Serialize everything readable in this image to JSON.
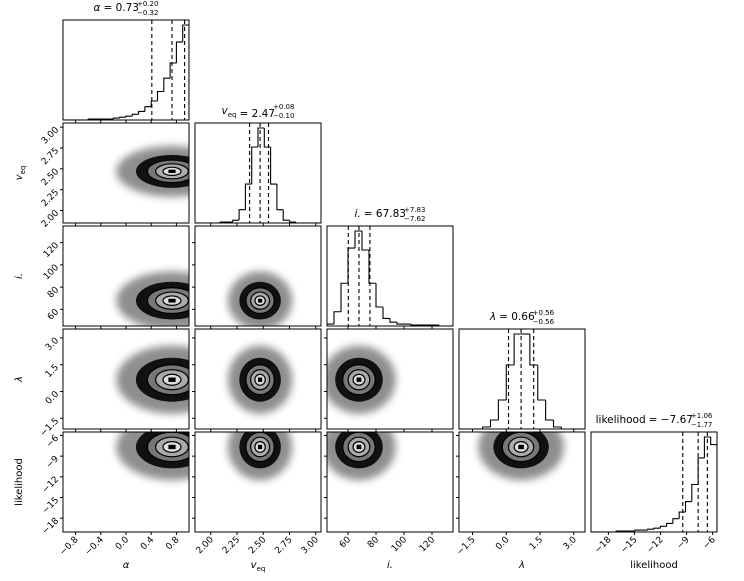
{
  "chart_data": {
    "type": "corner",
    "params": [
      {
        "label": "α",
        "title_value": "= 0.73",
        "upper": "+0.20",
        "lower": "−0.32",
        "lim": [
          -1,
          1
        ],
        "ticks": [
          {
            "value": -0.8,
            "label": "−0.8"
          },
          {
            "value": -0.4,
            "label": "−0.4"
          },
          {
            "value": 0,
            "label": "0.0"
          },
          0.4,
          0.8
        ],
        "bins": [
          -1,
          -0.9,
          -0.8,
          -0.7,
          -0.6,
          -0.5,
          -0.4,
          -0.3,
          -0.2,
          -0.1,
          0,
          0.1,
          0.2,
          0.3,
          0.4,
          0.5,
          0.6,
          0.7,
          0.8,
          0.9,
          1
        ],
        "counts": [
          0,
          0,
          0,
          0,
          1,
          1,
          1,
          1,
          2,
          3,
          4,
          6,
          9,
          14,
          20,
          30,
          44,
          60,
          82,
          100
        ],
        "quantiles": [
          0.41,
          0.73,
          0.93
        ]
      },
      {
        "label": {
          "main": "v",
          "sub": "eq"
        },
        "title_value": "= 2.47",
        "upper": "+0.08",
        "lower": "−0.10",
        "lim": [
          1.85,
          3.05
        ],
        "ticks": [
          {
            "value": 2,
            "label": "2.00"
          },
          2.25,
          {
            "value": 2.5,
            "label": "2.50"
          },
          2.75,
          {
            "value": 3,
            "label": "3.00"
          }
        ],
        "bins": [
          1.85,
          1.91,
          1.97,
          2.03,
          2.09,
          2.15,
          2.21,
          2.27,
          2.33,
          2.39,
          2.45,
          2.51,
          2.57,
          2.63,
          2.69,
          2.75,
          2.81,
          2.87,
          2.93,
          2.99,
          3.05
        ],
        "counts": [
          0,
          0,
          0,
          0,
          1,
          1,
          3,
          14,
          41,
          80,
          100,
          80,
          41,
          14,
          3,
          1,
          0,
          0,
          0,
          0
        ],
        "quantiles": [
          2.37,
          2.47,
          2.55
        ]
      },
      {
        "label": "i.",
        "title_value": "= 67.83",
        "upper": "+7.83",
        "lower": "−7.62",
        "lim": [
          45,
          135
        ],
        "ticks": [
          60,
          80,
          100,
          120
        ],
        "bins": [
          45,
          50,
          55,
          60,
          65,
          70,
          75,
          80,
          85,
          90,
          95,
          100,
          105,
          110,
          115,
          120,
          125,
          130,
          135
        ],
        "counts": [
          2,
          15,
          45,
          82,
          100,
          80,
          45,
          20,
          8,
          4,
          2,
          2,
          1,
          1,
          1,
          1,
          0,
          0
        ],
        "quantiles": [
          60.21,
          67.83,
          75.66
        ]
      },
      {
        "label": "λ",
        "title_value": "= 0.66",
        "upper": "+0.56",
        "lower": "−0.56",
        "lim": [
          -2.1,
          3.5
        ],
        "ticks": [
          {
            "value": -1.5,
            "label": "−1.5"
          },
          {
            "value": 0,
            "label": "0.0"
          },
          1.5,
          {
            "value": 3,
            "label": "3.0"
          }
        ],
        "bins": [
          -2.1,
          -1.75,
          -1.4,
          -1.05,
          -0.7,
          -0.35,
          0,
          0.35,
          0.7,
          1.05,
          1.4,
          1.75,
          2.1,
          2.45,
          2.8,
          3.15,
          3.5
        ],
        "counts": [
          0,
          0,
          0,
          2,
          9,
          29,
          64,
          95,
          95,
          64,
          29,
          9,
          2,
          0,
          0,
          0
        ],
        "quantiles": [
          0.1,
          0.66,
          1.22
        ]
      },
      {
        "label": "likelihood",
        "title_value": "= −7.67",
        "upper": "+1.06",
        "lower": "−1.77",
        "lim": [
          -20,
          -5.5
        ],
        "ticks": [
          {
            "value": -18,
            "label": "−18"
          },
          {
            "value": -15,
            "label": "−15"
          },
          {
            "value": -12,
            "label": "−12"
          },
          {
            "value": -9,
            "label": "−9"
          },
          {
            "value": -6,
            "label": "−6"
          }
        ],
        "bins": [
          -20,
          -19.275,
          -18.55,
          -17.825,
          -17.1,
          -16.375,
          -15.65,
          -14.925,
          -14.2,
          -13.475,
          -12.75,
          -12.025,
          -11.3,
          -10.575,
          -9.85,
          -9.125,
          -8.4,
          -7.675,
          -6.95,
          -6.225,
          -5.5
        ],
        "counts": [
          0,
          0,
          0,
          0,
          1,
          1,
          1,
          2,
          2,
          3,
          4,
          6,
          9,
          14,
          21,
          32,
          50,
          78,
          100,
          92
        ],
        "quantiles": [
          -9.44,
          -7.67,
          -6.61
        ]
      }
    ]
  }
}
